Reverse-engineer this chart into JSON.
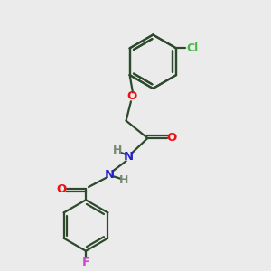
{
  "background_color": "#ebebeb",
  "bond_color": "#2d4a2d",
  "atom_colors": {
    "O": "#ee1111",
    "N": "#2222cc",
    "Cl": "#44bb44",
    "F": "#cc44cc",
    "H": "#778877",
    "C": "#2d4a2d"
  },
  "figsize": [
    3.0,
    3.0
  ],
  "dpi": 100,
  "lw": 1.6
}
